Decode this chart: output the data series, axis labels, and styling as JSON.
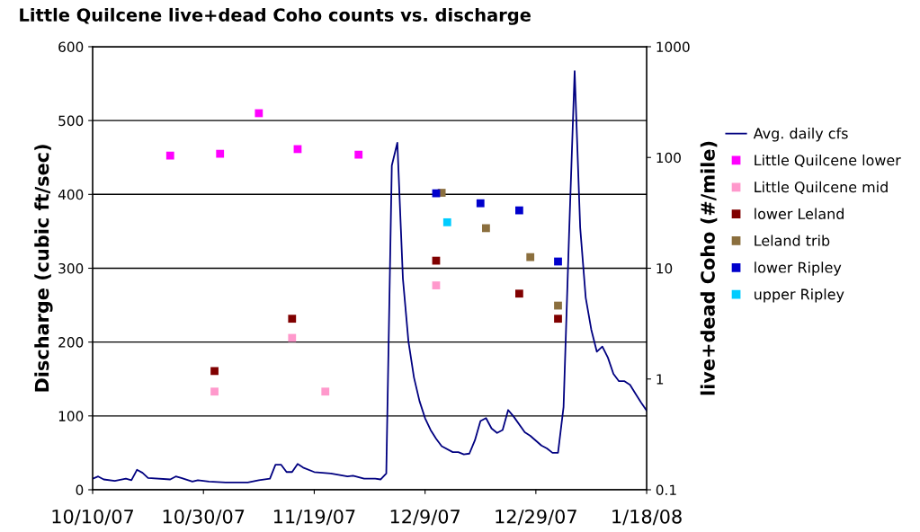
{
  "chart_data": {
    "type": "scatter",
    "title": "Little Quilcene live+dead Coho counts vs. discharge",
    "ylabel": "Discharge (cubic ft/sec)",
    "y2label": "live+dead Coho (#/mile)",
    "xlim": [
      "2007-10-10",
      "2008-01-18"
    ],
    "xticks": [
      {
        "value": "2007-10-10",
        "label": "10/10/07"
      },
      {
        "value": "2007-10-30",
        "label": "10/30/07"
      },
      {
        "value": "2007-11-19",
        "label": "11/19/07"
      },
      {
        "value": "2007-12-09",
        "label": "12/9/07"
      },
      {
        "value": "2007-12-29",
        "label": "12/29/07"
      },
      {
        "value": "2008-01-18",
        "label": "1/18/08"
      }
    ],
    "ylim": [
      0,
      600
    ],
    "yticks": [
      0,
      100,
      200,
      300,
      400,
      500,
      600
    ],
    "y2lim": [
      0.1,
      1000
    ],
    "y2ticks": [
      0.1,
      1,
      10,
      100,
      1000
    ],
    "log": "y2",
    "grid": "y",
    "legend": "right",
    "marker": "square",
    "series": [
      {
        "name": "Avg. daily cfs",
        "type": "line",
        "color": "#000080",
        "marker": "none",
        "x": [
          "2007-10-10",
          "2007-10-11",
          "2007-10-12",
          "2007-10-14",
          "2007-10-16",
          "2007-10-17",
          "2007-10-18",
          "2007-10-19",
          "2007-10-20",
          "2007-10-24",
          "2007-10-25",
          "2007-10-26",
          "2007-10-28",
          "2007-10-29",
          "2007-10-31",
          "2007-11-03",
          "2007-11-07",
          "2007-11-09",
          "2007-11-11",
          "2007-11-12",
          "2007-11-13",
          "2007-11-14",
          "2007-11-15",
          "2007-11-16",
          "2007-11-17",
          "2007-11-19",
          "2007-11-22",
          "2007-11-25",
          "2007-11-26",
          "2007-11-28",
          "2007-11-30",
          "2007-12-01",
          "2007-12-02",
          "2007-12-03",
          "2007-12-04",
          "2007-12-05",
          "2007-12-06",
          "2007-12-07",
          "2007-12-08",
          "2007-12-09",
          "2007-12-10",
          "2007-12-11",
          "2007-12-12",
          "2007-12-14",
          "2007-12-15",
          "2007-12-16",
          "2007-12-17",
          "2007-12-18",
          "2007-12-19",
          "2007-12-20",
          "2007-12-21",
          "2007-12-22",
          "2007-12-23",
          "2007-12-24",
          "2007-12-25",
          "2007-12-27",
          "2007-12-28",
          "2007-12-30",
          "2007-12-31",
          "2008-01-01",
          "2008-01-02",
          "2008-01-03",
          "2008-01-04",
          "2008-01-05",
          "2008-01-06",
          "2008-01-07",
          "2008-01-08",
          "2008-01-09",
          "2008-01-10",
          "2008-01-11",
          "2008-01-12",
          "2008-01-13",
          "2008-01-14",
          "2008-01-15",
          "2008-01-16",
          "2008-01-17",
          "2008-01-18"
        ],
        "values": [
          15,
          18,
          14,
          12,
          15,
          13,
          27,
          23,
          16,
          14,
          18,
          16,
          11,
          13,
          11,
          10,
          10,
          13,
          15,
          34,
          34,
          24,
          24,
          35,
          30,
          24,
          22,
          18,
          19,
          15,
          15,
          14,
          22,
          439,
          470,
          286,
          201,
          152,
          120,
          97,
          81,
          69,
          59,
          51,
          51,
          48,
          49,
          67,
          93,
          97,
          83,
          77,
          81,
          108,
          99,
          78,
          73,
          60,
          56,
          50,
          50,
          112,
          347,
          567,
          355,
          260,
          217,
          187,
          194,
          179,
          157,
          147,
          147,
          142,
          130,
          118,
          107
        ]
      },
      {
        "name": "Little Quilcene lower",
        "color": "#ff00ff",
        "axis": "y2",
        "x": [
          "2007-10-24",
          "2007-11-02",
          "2007-11-09",
          "2007-11-16",
          "2007-11-27"
        ],
        "values": [
          104,
          108,
          251,
          119,
          106
        ]
      },
      {
        "name": "Little Quilcene mid",
        "color": "#ff99cc",
        "axis": "y2",
        "x": [
          "2007-11-01",
          "2007-11-15",
          "2007-11-21",
          "2007-12-11"
        ],
        "values": [
          0.77,
          2.35,
          0.77,
          7
        ]
      },
      {
        "name": "lower Leland",
        "color": "#800000",
        "axis": "y2",
        "x": [
          "2007-11-01",
          "2007-11-15",
          "2007-12-11",
          "2007-12-26",
          "2008-01-02"
        ],
        "values": [
          1.18,
          3.5,
          11.7,
          5.9,
          3.5
        ]
      },
      {
        "name": "Leland trib",
        "color": "#8b6f3e",
        "axis": "y2",
        "x": [
          "2007-12-12",
          "2007-12-20",
          "2007-12-28",
          "2008-01-02"
        ],
        "values": [
          48,
          23,
          12.6,
          4.6
        ]
      },
      {
        "name": "lower Ripley",
        "color": "#0000cc",
        "axis": "y2",
        "x": [
          "2007-12-11",
          "2007-12-19",
          "2007-12-26",
          "2008-01-02"
        ],
        "values": [
          47.5,
          38.6,
          33.3,
          11.5
        ]
      },
      {
        "name": "upper Ripley",
        "color": "#00ccff",
        "axis": "y2",
        "x": [
          "2007-12-13"
        ],
        "values": [
          26
        ]
      }
    ]
  }
}
